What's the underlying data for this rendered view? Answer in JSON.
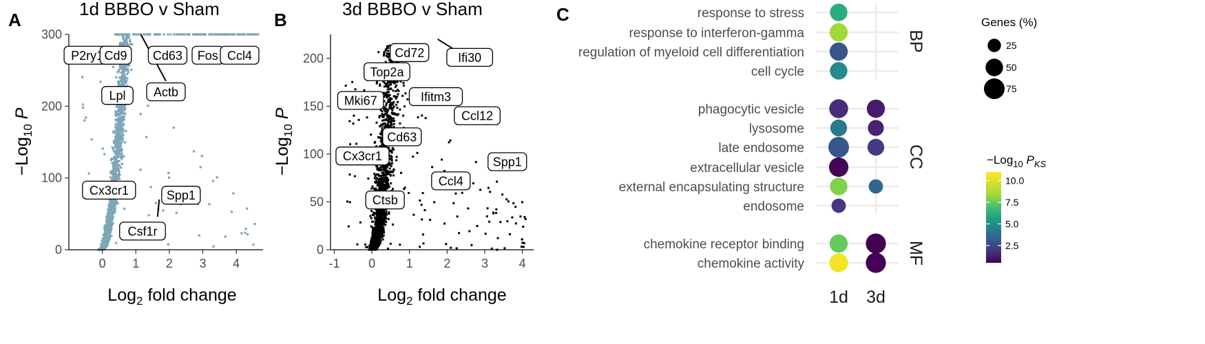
{
  "chart_data": [
    {
      "panel": "A",
      "type": "scatter",
      "title": "1d BBBO v Sham",
      "xlabel": "Log2 fold change",
      "ylabel": "-Log10 P",
      "xlim": [
        -1,
        4.8
      ],
      "ylim": [
        0,
        300
      ],
      "xticks": [
        "0",
        "1",
        "2",
        "3",
        "4"
      ],
      "yticks": [
        "0",
        "100",
        "200",
        "300"
      ],
      "point_color": "#7ea6b8",
      "labels": [
        {
          "text": "P2ry12",
          "x": -0.35,
          "y": 271
        },
        {
          "text": "Cd9",
          "x": 0.4,
          "y": 271
        },
        {
          "text": "Cd63",
          "x": 1.95,
          "y": 271
        },
        {
          "text": "Fos",
          "x": 3.15,
          "y": 271
        },
        {
          "text": "Ccl4",
          "x": 4.1,
          "y": 271
        },
        {
          "text": "Actb",
          "x": 1.9,
          "y": 220
        },
        {
          "text": "Lpl",
          "x": 0.45,
          "y": 215
        },
        {
          "text": "Cx3cr1",
          "x": 0.2,
          "y": 83
        },
        {
          "text": "Spp1",
          "x": 2.35,
          "y": 76
        },
        {
          "text": "Csf1r",
          "x": 1.2,
          "y": 26
        }
      ],
      "connectors": [
        {
          "from": [
            1.15,
            300
          ],
          "to": [
            1.9,
            235
          ]
        },
        {
          "from": [
            1.7,
            70
          ],
          "to": [
            1.65,
            46
          ]
        }
      ]
    },
    {
      "panel": "B",
      "type": "scatter",
      "title": "3d BBBO v Sham",
      "xlabel": "Log2 fold change",
      "ylabel": "-Log10 P",
      "xlim": [
        -1.1,
        4.3
      ],
      "ylim": [
        0,
        225
      ],
      "xticks": [
        "-1",
        "0",
        "1",
        "2",
        "3",
        "4"
      ],
      "yticks": [
        "0",
        "50",
        "100",
        "150",
        "200"
      ],
      "point_color": "#000000",
      "labels": [
        {
          "text": "Cd72",
          "x": 1.0,
          "y": 206
        },
        {
          "text": "Ifi30",
          "x": 2.6,
          "y": 201
        },
        {
          "text": "Top2a",
          "x": 0.4,
          "y": 186
        },
        {
          "text": "Mki67",
          "x": -0.3,
          "y": 156
        },
        {
          "text": "Ifitm3",
          "x": 1.7,
          "y": 160
        },
        {
          "text": "Ccl12",
          "x": 2.8,
          "y": 140
        },
        {
          "text": "Cd63",
          "x": 0.8,
          "y": 118
        },
        {
          "text": "Cx3cr1",
          "x": -0.25,
          "y": 98
        },
        {
          "text": "Spp1",
          "x": 3.6,
          "y": 92
        },
        {
          "text": "Ccl4",
          "x": 2.1,
          "y": 72
        },
        {
          "text": "Ctsb",
          "x": 0.35,
          "y": 52
        }
      ],
      "connectors": [
        {
          "from": [
            1.75,
            220
          ],
          "to": [
            2.4,
            204
          ]
        }
      ]
    },
    {
      "panel": "C",
      "type": "scatter",
      "subtype": "dot-plot",
      "x_categories": [
        "1d",
        "3d"
      ],
      "facets": [
        "BP",
        "CC",
        "MF"
      ],
      "size_legend": {
        "title": "Genes (%)",
        "values": [
          "25",
          "50",
          "75"
        ]
      },
      "color_legend": {
        "title": "-Log10 PKS",
        "ticks": [
          "2.5",
          "5.0",
          "7.5",
          "10.0"
        ],
        "range": [
          0.5,
          11
        ]
      },
      "terms": [
        {
          "facet": "BP",
          "label": "response to stress",
          "points": [
            {
              "x": "1d",
              "genes": 50,
              "neglog10p": 7.0
            }
          ]
        },
        {
          "facet": "BP",
          "label": "response to interferon-gamma",
          "points": [
            {
              "x": "1d",
              "genes": 55,
              "neglog10p": 9.5
            }
          ]
        },
        {
          "facet": "BP",
          "label": "regulation of myeloid cell differentiation",
          "points": [
            {
              "x": "1d",
              "genes": 55,
              "neglog10p": 3.3
            }
          ]
        },
        {
          "facet": "BP",
          "label": "cell cycle",
          "points": [
            {
              "x": "1d",
              "genes": 50,
              "neglog10p": 5.5
            }
          ]
        },
        {
          "facet": "CC",
          "label": "phagocytic vesicle",
          "points": [
            {
              "x": "1d",
              "genes": 60,
              "neglog10p": 1.8
            },
            {
              "x": "3d",
              "genes": 55,
              "neglog10p": 1.3
            }
          ]
        },
        {
          "facet": "CC",
          "label": "lysosome",
          "points": [
            {
              "x": "1d",
              "genes": 45,
              "neglog10p": 4.8
            },
            {
              "x": "3d",
              "genes": 40,
              "neglog10p": 1.5
            }
          ]
        },
        {
          "facet": "CC",
          "label": "late endosome",
          "points": [
            {
              "x": "1d",
              "genes": 75,
              "neglog10p": 3.3
            },
            {
              "x": "3d",
              "genes": 45,
              "neglog10p": 2.3
            }
          ]
        },
        {
          "facet": "CC",
          "label": "extracellular vesicle",
          "points": [
            {
              "x": "1d",
              "genes": 65,
              "neglog10p": 0.6
            }
          ]
        },
        {
          "facet": "CC",
          "label": "external encapsulating structure",
          "points": [
            {
              "x": "1d",
              "genes": 50,
              "neglog10p": 9.0
            },
            {
              "x": "3d",
              "genes": 30,
              "neglog10p": 4.0
            }
          ]
        },
        {
          "facet": "CC",
          "label": "endosome",
          "points": [
            {
              "x": "1d",
              "genes": 30,
              "neglog10p": 2.2
            }
          ]
        },
        {
          "facet": "MF",
          "label": "chemokine receptor binding",
          "points": [
            {
              "x": "1d",
              "genes": 55,
              "neglog10p": 8.5
            },
            {
              "x": "3d",
              "genes": 70,
              "neglog10p": 0.5
            }
          ]
        },
        {
          "facet": "MF",
          "label": "chemokine activity",
          "points": [
            {
              "x": "1d",
              "genes": 60,
              "neglog10p": 10.8
            },
            {
              "x": "3d",
              "genes": 70,
              "neglog10p": 0.5
            }
          ]
        }
      ]
    }
  ]
}
